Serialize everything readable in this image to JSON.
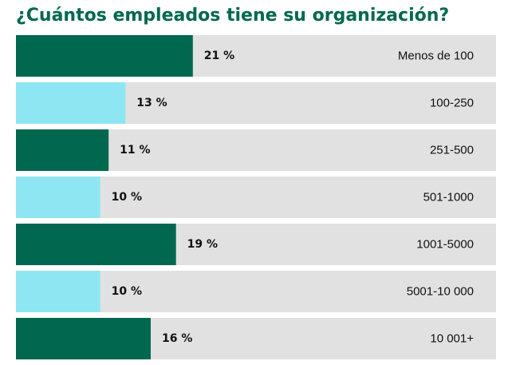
{
  "colors": {
    "title": "#00684f",
    "track": "#e1e1e1",
    "dark_green": "#00684f",
    "light_blue": "#8ee6f3"
  },
  "chart_data": {
    "type": "bar",
    "orientation": "horizontal",
    "title": "¿Cuántos empleados tiene su organización?",
    "categories": [
      "Menos de 100",
      "100-250",
      "251-500",
      "501-1000",
      "1001-5000",
      "5001-10 000",
      "10 001+"
    ],
    "values": [
      21,
      13,
      11,
      10,
      19,
      10,
      16
    ],
    "value_labels": [
      "21 %",
      "13 %",
      "11 %",
      "10 %",
      "19 %",
      "10 %",
      "16 %"
    ],
    "bar_colors": [
      "#00684f",
      "#8ee6f3",
      "#00684f",
      "#8ee6f3",
      "#00684f",
      "#8ee6f3",
      "#00684f"
    ],
    "unit": "%",
    "xlim": [
      0,
      57
    ],
    "grid": false,
    "legend": "none"
  }
}
